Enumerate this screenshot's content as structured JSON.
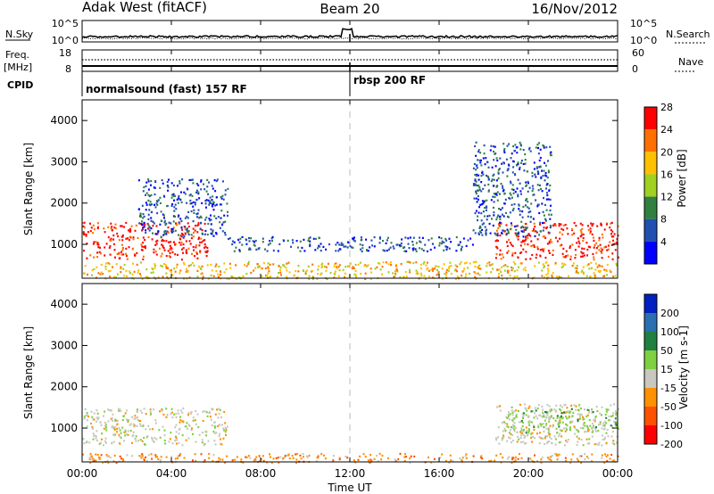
{
  "header": {
    "station": "Adak West (fitACF)",
    "beam": "Beam 20",
    "date": "16/Nov/2012"
  },
  "noise_panel": {
    "left_label": "N.Sky",
    "right_label": "N.Search",
    "left_ticks": [
      "10^5",
      "10^0"
    ],
    "right_ticks": [
      "10^5",
      "10^0"
    ]
  },
  "freq_panel": {
    "left_label_1": "Freq.",
    "left_label_2": "[MHz]",
    "right_label": "Nave",
    "left_ticks": [
      "18",
      "8"
    ],
    "right_ticks": [
      "60",
      "0"
    ]
  },
  "cpid_panel": {
    "label": "CPID",
    "segments": [
      {
        "text": "normalsound (fast) 157 RF",
        "start_hour": 0
      },
      {
        "text": "rbsp 200 RF",
        "start_hour": 12
      }
    ]
  },
  "power_panel": {
    "ylabel": "Slant Range [km]",
    "yticks": [
      "1000",
      "2000",
      "3000",
      "4000"
    ],
    "colorbar_label": "Power [dB]",
    "colorbar_ticks": [
      "4",
      "8",
      "12",
      "16",
      "20",
      "24",
      "28"
    ],
    "colors": [
      "#0000ff",
      "#2050b0",
      "#308040",
      "#a0d020",
      "#ffc000",
      "#ff7000",
      "#ff0000"
    ]
  },
  "velocity_panel": {
    "ylabel": "Slant Range [km]",
    "yticks": [
      "1000",
      "2000",
      "3000",
      "4000"
    ],
    "colorbar_label": "Velocity [m s-1]",
    "colorbar_ticks": [
      "200",
      "100",
      "50",
      "15",
      "-15",
      "-50",
      "-100",
      "-200"
    ],
    "colors": [
      "#0020c0",
      "#2a6fb0",
      "#208040",
      "#7fd040",
      "#c8c8c0",
      "#ff9000",
      "#ff5000",
      "#ff0000"
    ]
  },
  "xaxis": {
    "label": "Time UT",
    "ticks": [
      "00:00",
      "04:00",
      "08:00",
      "12:00",
      "16:00",
      "20:00",
      "00:00"
    ]
  },
  "chart_data": {
    "type": "heatmap",
    "x_range_hours": [
      0,
      24
    ],
    "y_range_km": [
      180,
      4500
    ],
    "regions_power": [
      {
        "t0": 0,
        "t1": 5.6,
        "r0": 650,
        "r1": 1550,
        "level": 6
      },
      {
        "t0": 2.5,
        "t1": 6.5,
        "r0": 1200,
        "r1": 2600,
        "level": 1
      },
      {
        "t0": 6.5,
        "t1": 17.5,
        "r0": 850,
        "r1": 1200,
        "level": 1
      },
      {
        "t0": 0,
        "t1": 24,
        "r0": 180,
        "r1": 600,
        "level": 4
      },
      {
        "t0": 18.5,
        "t1": 24,
        "r0": 650,
        "r1": 1550,
        "level": 6
      },
      {
        "t0": 17.5,
        "t1": 21,
        "r0": 1200,
        "r1": 3500,
        "level": 1
      }
    ],
    "regions_velocity": [
      {
        "t0": 0,
        "t1": 6.5,
        "r0": 600,
        "r1": 1500,
        "level": 4
      },
      {
        "t0": 18.5,
        "t1": 24,
        "r0": 600,
        "r1": 1600,
        "level": 4
      },
      {
        "t0": 19,
        "t1": 24,
        "r0": 900,
        "r1": 1500,
        "level": 3
      },
      {
        "t0": 0,
        "t1": 24,
        "r0": 180,
        "r1": 400,
        "level": 5
      }
    ]
  }
}
